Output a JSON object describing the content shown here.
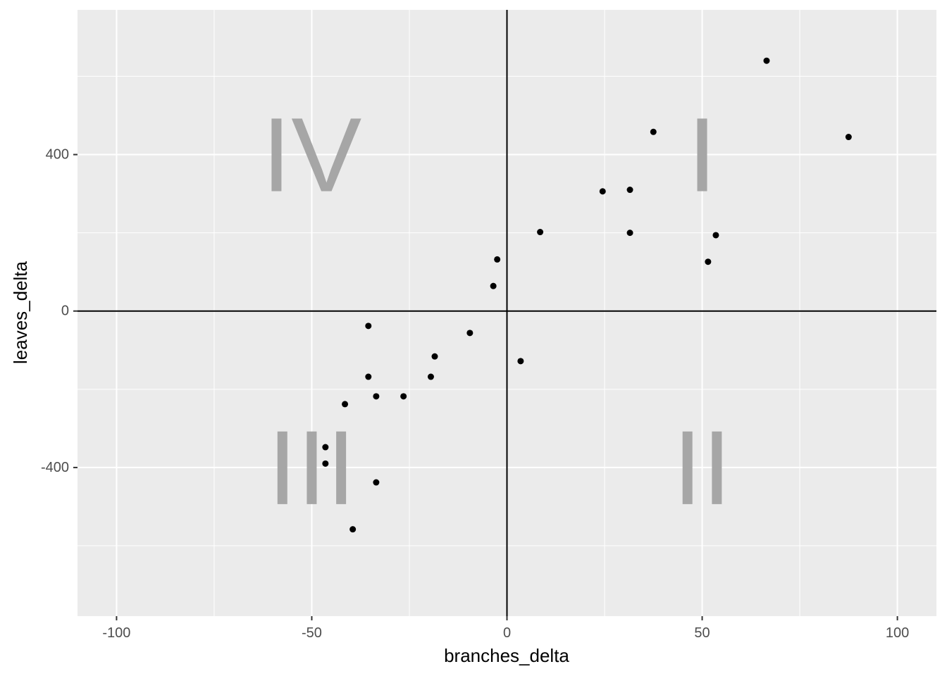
{
  "chart_data": {
    "type": "scatter",
    "xlabel": "branches_delta",
    "ylabel": "leaves_delta",
    "xlim": [
      -110,
      110
    ],
    "ylim": [
      -780,
      770
    ],
    "x_ticks": [
      -100,
      -50,
      0,
      50,
      100
    ],
    "x_tick_labels": [
      "-100",
      "-50",
      "0",
      "50",
      "100"
    ],
    "y_ticks": [
      -400,
      0,
      400
    ],
    "y_tick_labels": [
      "-400",
      "0",
      "400"
    ],
    "x_minor_ticks": [
      -75,
      -25,
      25,
      75
    ],
    "y_minor_ticks": [
      -600,
      -200,
      200,
      600
    ],
    "reference_lines": {
      "x": 0,
      "y": 0
    },
    "grid": true,
    "panel_background": "#ebebeb",
    "point_color": "#000000",
    "quadrant_label_color": "#a6a6a6",
    "quadrant_labels": [
      {
        "text": "I",
        "x": 50,
        "y": 400
      },
      {
        "text": "II",
        "x": 50,
        "y": -400
      },
      {
        "text": "III",
        "x": -50,
        "y": -400
      },
      {
        "text": "IV",
        "x": -50,
        "y": 400
      }
    ],
    "points": [
      {
        "x": 66.5,
        "y": 640
      },
      {
        "x": 87.5,
        "y": 445
      },
      {
        "x": 37.5,
        "y": 458
      },
      {
        "x": 24.5,
        "y": 306
      },
      {
        "x": 31.5,
        "y": 310
      },
      {
        "x": 31.5,
        "y": 200
      },
      {
        "x": 53.5,
        "y": 194
      },
      {
        "x": 51.5,
        "y": 126
      },
      {
        "x": 8.5,
        "y": 202
      },
      {
        "x": -2.5,
        "y": 132
      },
      {
        "x": -3.5,
        "y": 64
      },
      {
        "x": -9.5,
        "y": -56
      },
      {
        "x": 3.5,
        "y": -128
      },
      {
        "x": -18.5,
        "y": -116
      },
      {
        "x": -19.5,
        "y": -168
      },
      {
        "x": -35.5,
        "y": -38
      },
      {
        "x": -35.5,
        "y": -168
      },
      {
        "x": -33.5,
        "y": -218
      },
      {
        "x": -26.5,
        "y": -218
      },
      {
        "x": -41.5,
        "y": -238
      },
      {
        "x": -46.5,
        "y": -348
      },
      {
        "x": -46.5,
        "y": -390
      },
      {
        "x": -33.5,
        "y": -438
      },
      {
        "x": -39.5,
        "y": -558
      }
    ]
  }
}
